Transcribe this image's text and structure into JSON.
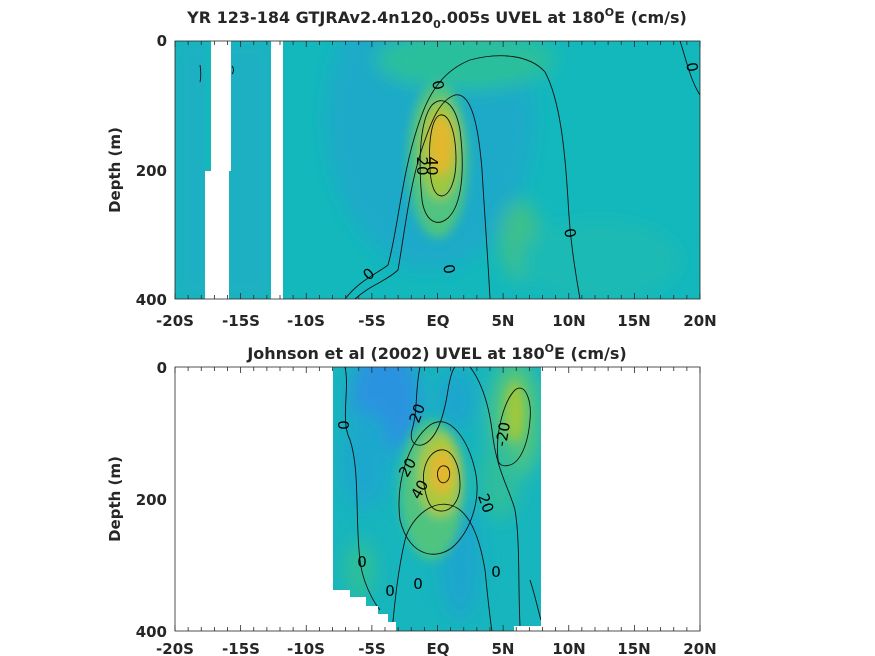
{
  "chart_data": [
    {
      "type": "heatmap",
      "title": "YR 123-184 GTJRAv2.4n120",
      "title_sub": "0",
      "title_tail": ".005s UVEL at 180",
      "title_sup": "O",
      "title_end": "E (cm/s)",
      "ylabel": "Depth (m)",
      "xlim": [
        -20,
        20
      ],
      "ylim": [
        0,
        400
      ],
      "xticks": [
        "-20S",
        "-15S",
        "-10S",
        "-5S",
        "EQ",
        "5N",
        "10N",
        "15N",
        "20N"
      ],
      "yticks": [
        "0",
        "200",
        "400"
      ],
      "contour_labels": [
        "0",
        "0",
        "20",
        "40",
        "0",
        "0",
        "0"
      ],
      "core": {
        "lat": 0.5,
        "depth": 160,
        "max": 45
      }
    },
    {
      "type": "heatmap",
      "title": "Johnson et al (2002) UVEL at 180",
      "title_sup": "O",
      "title_end": "E (cm/s)",
      "ylabel": "Depth (m)",
      "xlim": [
        -20,
        20
      ],
      "ylim": [
        0,
        400
      ],
      "xticks": [
        "-20S",
        "-15S",
        "-10S",
        "-5S",
        "EQ",
        "5N",
        "10N",
        "15N",
        "20N"
      ],
      "yticks": [
        "0",
        "200",
        "400"
      ],
      "contour_labels": [
        "0",
        "20",
        "-20",
        "20",
        "40",
        "20",
        "0",
        "0",
        "0",
        "0"
      ],
      "core": {
        "lat": 0.5,
        "depth": 165,
        "max": 45
      }
    }
  ],
  "colors": {
    "background": "#ffffff",
    "text": "#262626",
    "field_base": "#13b8bc",
    "field_west": "#1aafc3",
    "westward_flow": "#2a93e0",
    "eastward_mid": "#52c483",
    "eastward_high": "#a9c93f",
    "core": "#e3b72e"
  }
}
